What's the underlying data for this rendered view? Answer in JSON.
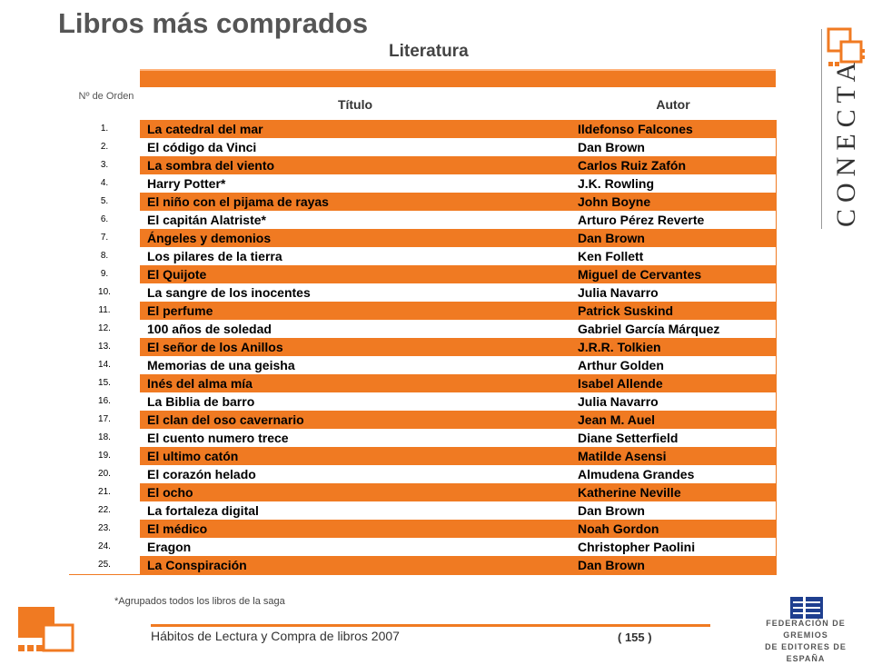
{
  "header": {
    "title": "Libros más comprados",
    "subtitle": "Literatura"
  },
  "table": {
    "col_order": "Nº de Orden",
    "col_title": "Título",
    "col_author": "Autor",
    "rows": [
      {
        "num": "1.",
        "title": "La catedral del mar",
        "author": "Ildefonso Falcones"
      },
      {
        "num": "2.",
        "title": "El código da Vinci",
        "author": "Dan Brown"
      },
      {
        "num": "3.",
        "title": "La sombra del viento",
        "author": "Carlos Ruiz Zafón"
      },
      {
        "num": "4.",
        "title": "Harry Potter*",
        "author": "J.K. Rowling"
      },
      {
        "num": "5.",
        "title": "El niño con el pijama de rayas",
        "author": "John Boyne"
      },
      {
        "num": "6.",
        "title": "El capitán Alatriste*",
        "author": "Arturo Pérez Reverte"
      },
      {
        "num": "7.",
        "title": "Ángeles y demonios",
        "author": "Dan Brown"
      },
      {
        "num": "8.",
        "title": "Los pilares de la tierra",
        "author": "Ken Follett"
      },
      {
        "num": "9.",
        "title": "El Quijote",
        "author": "Miguel de Cervantes"
      },
      {
        "num": "10.",
        "title": "La sangre de los inocentes",
        "author": "Julia Navarro"
      },
      {
        "num": "11.",
        "title": "El perfume",
        "author": "Patrick Suskind"
      },
      {
        "num": "12.",
        "title": "100 años de soledad",
        "author": "Gabriel García Márquez"
      },
      {
        "num": "13.",
        "title": "El señor de los Anillos",
        "author": "J.R.R. Tolkien"
      },
      {
        "num": "14.",
        "title": "Memorias de una geisha",
        "author": "Arthur Golden"
      },
      {
        "num": "15.",
        "title": "Inés del alma mía",
        "author": "Isabel Allende"
      },
      {
        "num": "16.",
        "title": "La Biblia de barro",
        "author": "Julia Navarro"
      },
      {
        "num": "17.",
        "title": "El clan del oso cavernario",
        "author": "Jean M. Auel"
      },
      {
        "num": "18.",
        "title": "El cuento numero trece",
        "author": "Diane Setterfield"
      },
      {
        "num": "19.",
        "title": "El ultimo catón",
        "author": "Matilde Asensi"
      },
      {
        "num": "20.",
        "title": "El corazón helado",
        "author": "Almudena Grandes"
      },
      {
        "num": "21.",
        "title": "El ocho",
        "author": "Katherine Neville"
      },
      {
        "num": "22.",
        "title": "La fortaleza digital",
        "author": "Dan Brown"
      },
      {
        "num": "23.",
        "title": "El médico",
        "author": "Noah Gordon"
      },
      {
        "num": "24.",
        "title": "Eragon",
        "author": "Christopher Paolini"
      },
      {
        "num": "25.",
        "title": "La Conspiración",
        "author": "Dan Brown"
      }
    ]
  },
  "footnote": "*Agrupados todos los libros de la saga",
  "footer": {
    "text": "Hábitos de Lectura y Compra de libros 2007",
    "page": "( 155 )"
  },
  "logos": {
    "conecta": "CONECTA",
    "federacion_line1": "FEDERACIÓN DE GREMIOS",
    "federacion_line2": "DE EDITORES DE ESPAÑA"
  },
  "colors": {
    "accent": "#f07a22",
    "navy": "#1f3f8f"
  }
}
